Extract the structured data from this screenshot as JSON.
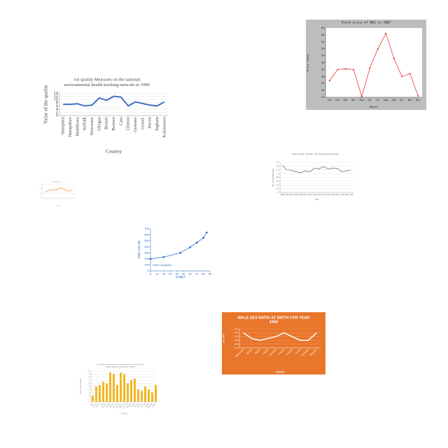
{
  "chart_data": [
    {
      "type": "line",
      "title": "Stock price of BBS in 2007",
      "xlabel": "Month",
      "ylabel": "Price (USD)",
      "categories": [
        "Jan",
        "Feb",
        "Mar",
        "Apr",
        "May",
        "Jun",
        "Jul",
        "Aug",
        "Sep",
        "Oct",
        "Nov",
        "Dec"
      ],
      "series": [
        {
          "name": "BBS",
          "color": "#e02020",
          "values": [
            27,
            35,
            35.5,
            35,
            15.5,
            36,
            50,
            61,
            43,
            30,
            32,
            16
          ]
        }
      ],
      "ylim": [
        15,
        65
      ],
      "yticks": [
        15,
        20,
        25,
        30,
        35,
        40,
        45,
        50,
        55,
        60,
        65
      ],
      "markers": true,
      "grid": false
    },
    {
      "type": "line",
      "title": [
        "Air quality Measures on the national",
        "environmental health tracking network in 1999"
      ],
      "xlabel": "Country",
      "ylabel": "Value of the quality",
      "categories": [
        "Hampden",
        "Hampshire",
        "Middlesex",
        "Suffolk",
        "Worcester",
        "Allegan",
        "Benzie",
        "Berrien",
        "Cass",
        "Clinton",
        "Genesee",
        "Grand.",
        "Huron",
        "Ingham",
        "Kalamazoo"
      ],
      "series": [
        {
          "name": "1999",
          "color": "#4472c4",
          "values": [
            7,
            7,
            7.3,
            6,
            6.5,
            11,
            9.5,
            12,
            11.5,
            6,
            8.5,
            7.5,
            6.5,
            6,
            8.5
          ]
        }
      ],
      "ylim": [
        0,
        14
      ],
      "yticks": [
        0,
        2,
        4,
        6,
        8,
        10,
        12,
        14
      ],
      "grid": true
    },
    {
      "type": "line",
      "title": "Alaska - Alaska - Sex Ratio - Age: No years Alaska at a Rate",
      "xlabel": "Years",
      "ylabel": "No. of males/females",
      "categories": [
        "2005",
        "2006",
        "2007",
        "2008",
        "2009",
        "2010",
        "2011",
        "2012",
        "2013",
        "2014",
        "2015",
        "2016",
        "2017",
        "2018",
        "2019",
        "2020"
      ],
      "series": [
        {
          "name": "Alaska",
          "color": "#777777",
          "values": [
            1.45,
            1.2,
            1.18,
            1.1,
            1.05,
            1.15,
            1.1,
            1.3,
            1.25,
            1.38,
            1.25,
            1.3,
            1.28,
            1.1,
            1.15,
            1.2
          ]
        }
      ],
      "ylim": [
        0,
        1.6
      ],
      "yticks": [
        0,
        0.2,
        0.4,
        0.6,
        0.8,
        1,
        1.2,
        1.4,
        1.6
      ],
      "grid": true
    },
    {
      "type": "line",
      "title": "Air quality measures",
      "xlabel": "County",
      "categories": [
        "A",
        "B",
        "C",
        "D",
        "E",
        "F"
      ],
      "series": [
        {
          "name": "Measure",
          "color": "#f4a460",
          "values": [
            5,
            7,
            7,
            9,
            6,
            6.5
          ]
        }
      ],
      "ylim": [
        0,
        12
      ],
      "yticks": [
        0,
        4,
        8,
        12
      ],
      "grid": true
    },
    {
      "type": "scatter",
      "xlabel": "Output",
      "ylabel": "Total Cost ($)",
      "annotation": "Fixed Cost ($200)",
      "x": [
        0,
        20,
        45,
        60,
        70,
        80,
        85
      ],
      "series": [
        {
          "name": "Total Cost",
          "color": "#1f5fbf",
          "values": [
            200,
            230,
            300,
            395,
            470,
            550,
            640
          ]
        }
      ],
      "xlim": [
        0,
        90
      ],
      "xticks": [
        0,
        10,
        20,
        30,
        40,
        50,
        60,
        70,
        80,
        90
      ],
      "ylim": [
        0,
        700
      ],
      "yticks": [
        0,
        100,
        200,
        300,
        400,
        500,
        600,
        700
      ],
      "grid": false
    },
    {
      "type": "line",
      "title": [
        "MALE SEX RATIO AT BIRTH FOR YEAR",
        "1960"
      ],
      "xlabel": "Country",
      "ylabel": "Sex ratio",
      "categories": [
        "Afghanistan",
        "Albania",
        "Algeria",
        "Angola",
        "Argentina",
        "Armenia",
        "Australia",
        "Austria",
        "Azerbaijan",
        "Bahamas"
      ],
      "series": [
        {
          "name": "1960",
          "color": "#ffffff",
          "values": [
            1.06,
            1.045,
            1.04,
            1.045,
            1.05,
            1.06,
            1.05,
            1.04,
            1.04,
            1.06
          ]
        }
      ],
      "ylim": [
        1.02,
        1.07
      ],
      "yticks": [
        1.02,
        1.03,
        1.04,
        1.05,
        1.06,
        1.07
      ],
      "grid": true
    },
    {
      "type": "bar",
      "title": [
        "Air quality Measures on the national environmental",
        "health tracking network in 2009"
      ],
      "xlabel": "County",
      "ylabel": "Value of air quality",
      "categories": [
        "Bibb",
        "Blount",
        "Calhoun",
        "Clay",
        "Cullman",
        "DeKalb",
        "Elmore",
        "Etowah",
        "Jackson",
        "Jefferson",
        "Lawrence",
        "Madison",
        "Marion",
        "Mobile",
        "Morgan",
        "Russell",
        "Shelby",
        "Talladega",
        "Walker"
      ],
      "series": [
        {
          "name": "2009",
          "color": "#f2b824",
          "values": [
            2,
            5,
            5.5,
            6.5,
            6,
            9.5,
            9,
            5.5,
            9.5,
            9,
            6,
            7,
            7.5,
            4,
            3.5,
            5,
            4,
            3,
            5.5
          ]
        }
      ],
      "ylim": [
        0,
        10
      ],
      "yticks": [
        0,
        1,
        2,
        3,
        4,
        5,
        6,
        7,
        8,
        9,
        10
      ],
      "grid": true
    }
  ]
}
